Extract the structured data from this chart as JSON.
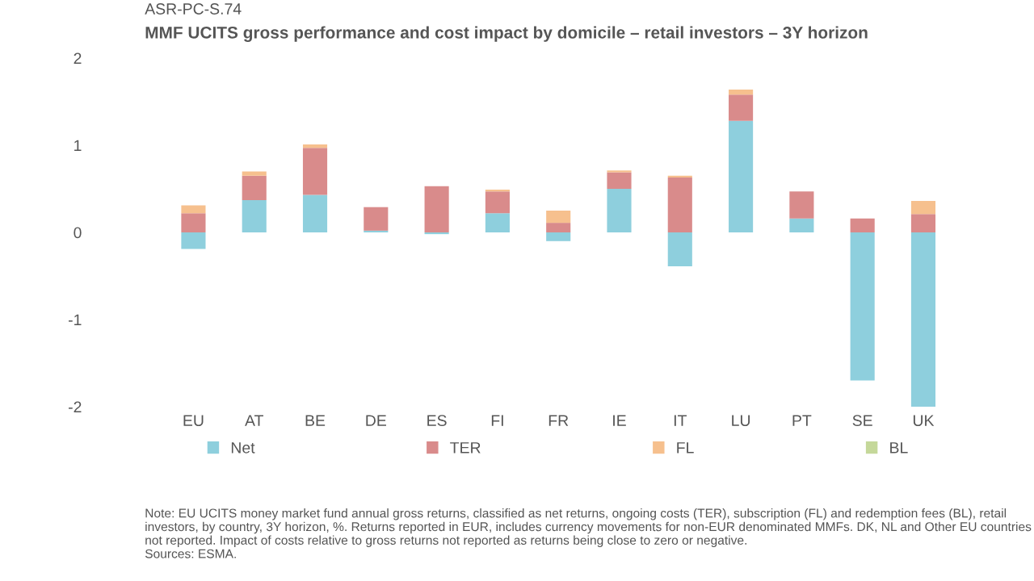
{
  "chart_data": {
    "type": "bar",
    "stacked": true,
    "title": "MMF UCITS gross performance and cost impact by domicile – retail investors – 3Y horizon",
    "categories": [
      "EU",
      "AT",
      "BE",
      "DE",
      "ES",
      "FI",
      "FR",
      "IE",
      "IT",
      "LU",
      "PT",
      "SE",
      "UK"
    ],
    "series": [
      {
        "name": "Net",
        "color": "#8ecfdd",
        "values": [
          -0.19,
          0.37,
          0.43,
          0.02,
          -0.02,
          0.22,
          -0.1,
          0.5,
          -0.39,
          1.28,
          0.16,
          -1.7,
          -2.0
        ]
      },
      {
        "name": "TER",
        "color": "#d98b8b",
        "values": [
          0.22,
          0.28,
          0.54,
          0.27,
          0.53,
          0.25,
          0.11,
          0.19,
          0.63,
          0.3,
          0.31,
          0.16,
          0.21
        ]
      },
      {
        "name": "FL",
        "color": "#f6c08e",
        "values": [
          0.09,
          0.05,
          0.04,
          null,
          null,
          0.02,
          0.14,
          0.02,
          0.02,
          0.06,
          null,
          null,
          0.15
        ]
      },
      {
        "name": "BL",
        "color": "#c5d89a",
        "values": [
          null,
          null,
          null,
          null,
          null,
          null,
          null,
          null,
          null,
          null,
          null,
          null,
          null
        ]
      }
    ],
    "ylim": [
      -2,
      2
    ],
    "yticks": [
      -2,
      -1,
      0,
      1,
      2
    ],
    "grid": false,
    "legend": "bottom",
    "annotations": [
      "ASR-PC-S.74",
      "Note: EU UCITS money market fund annual gross returns, classified as net returns, ongoing costs (TER), subscription (FL) and redemption fees (BL), retail investors, by country, 3Y horizon, %. Returns reported in EUR, includes currency movements for non-EUR denominated MMFs. DK, NL and Other EU countries not reported. Impact of costs relative to gross returns not reported as returns being close to zero or negative.\nSources: ESMA."
    ]
  }
}
